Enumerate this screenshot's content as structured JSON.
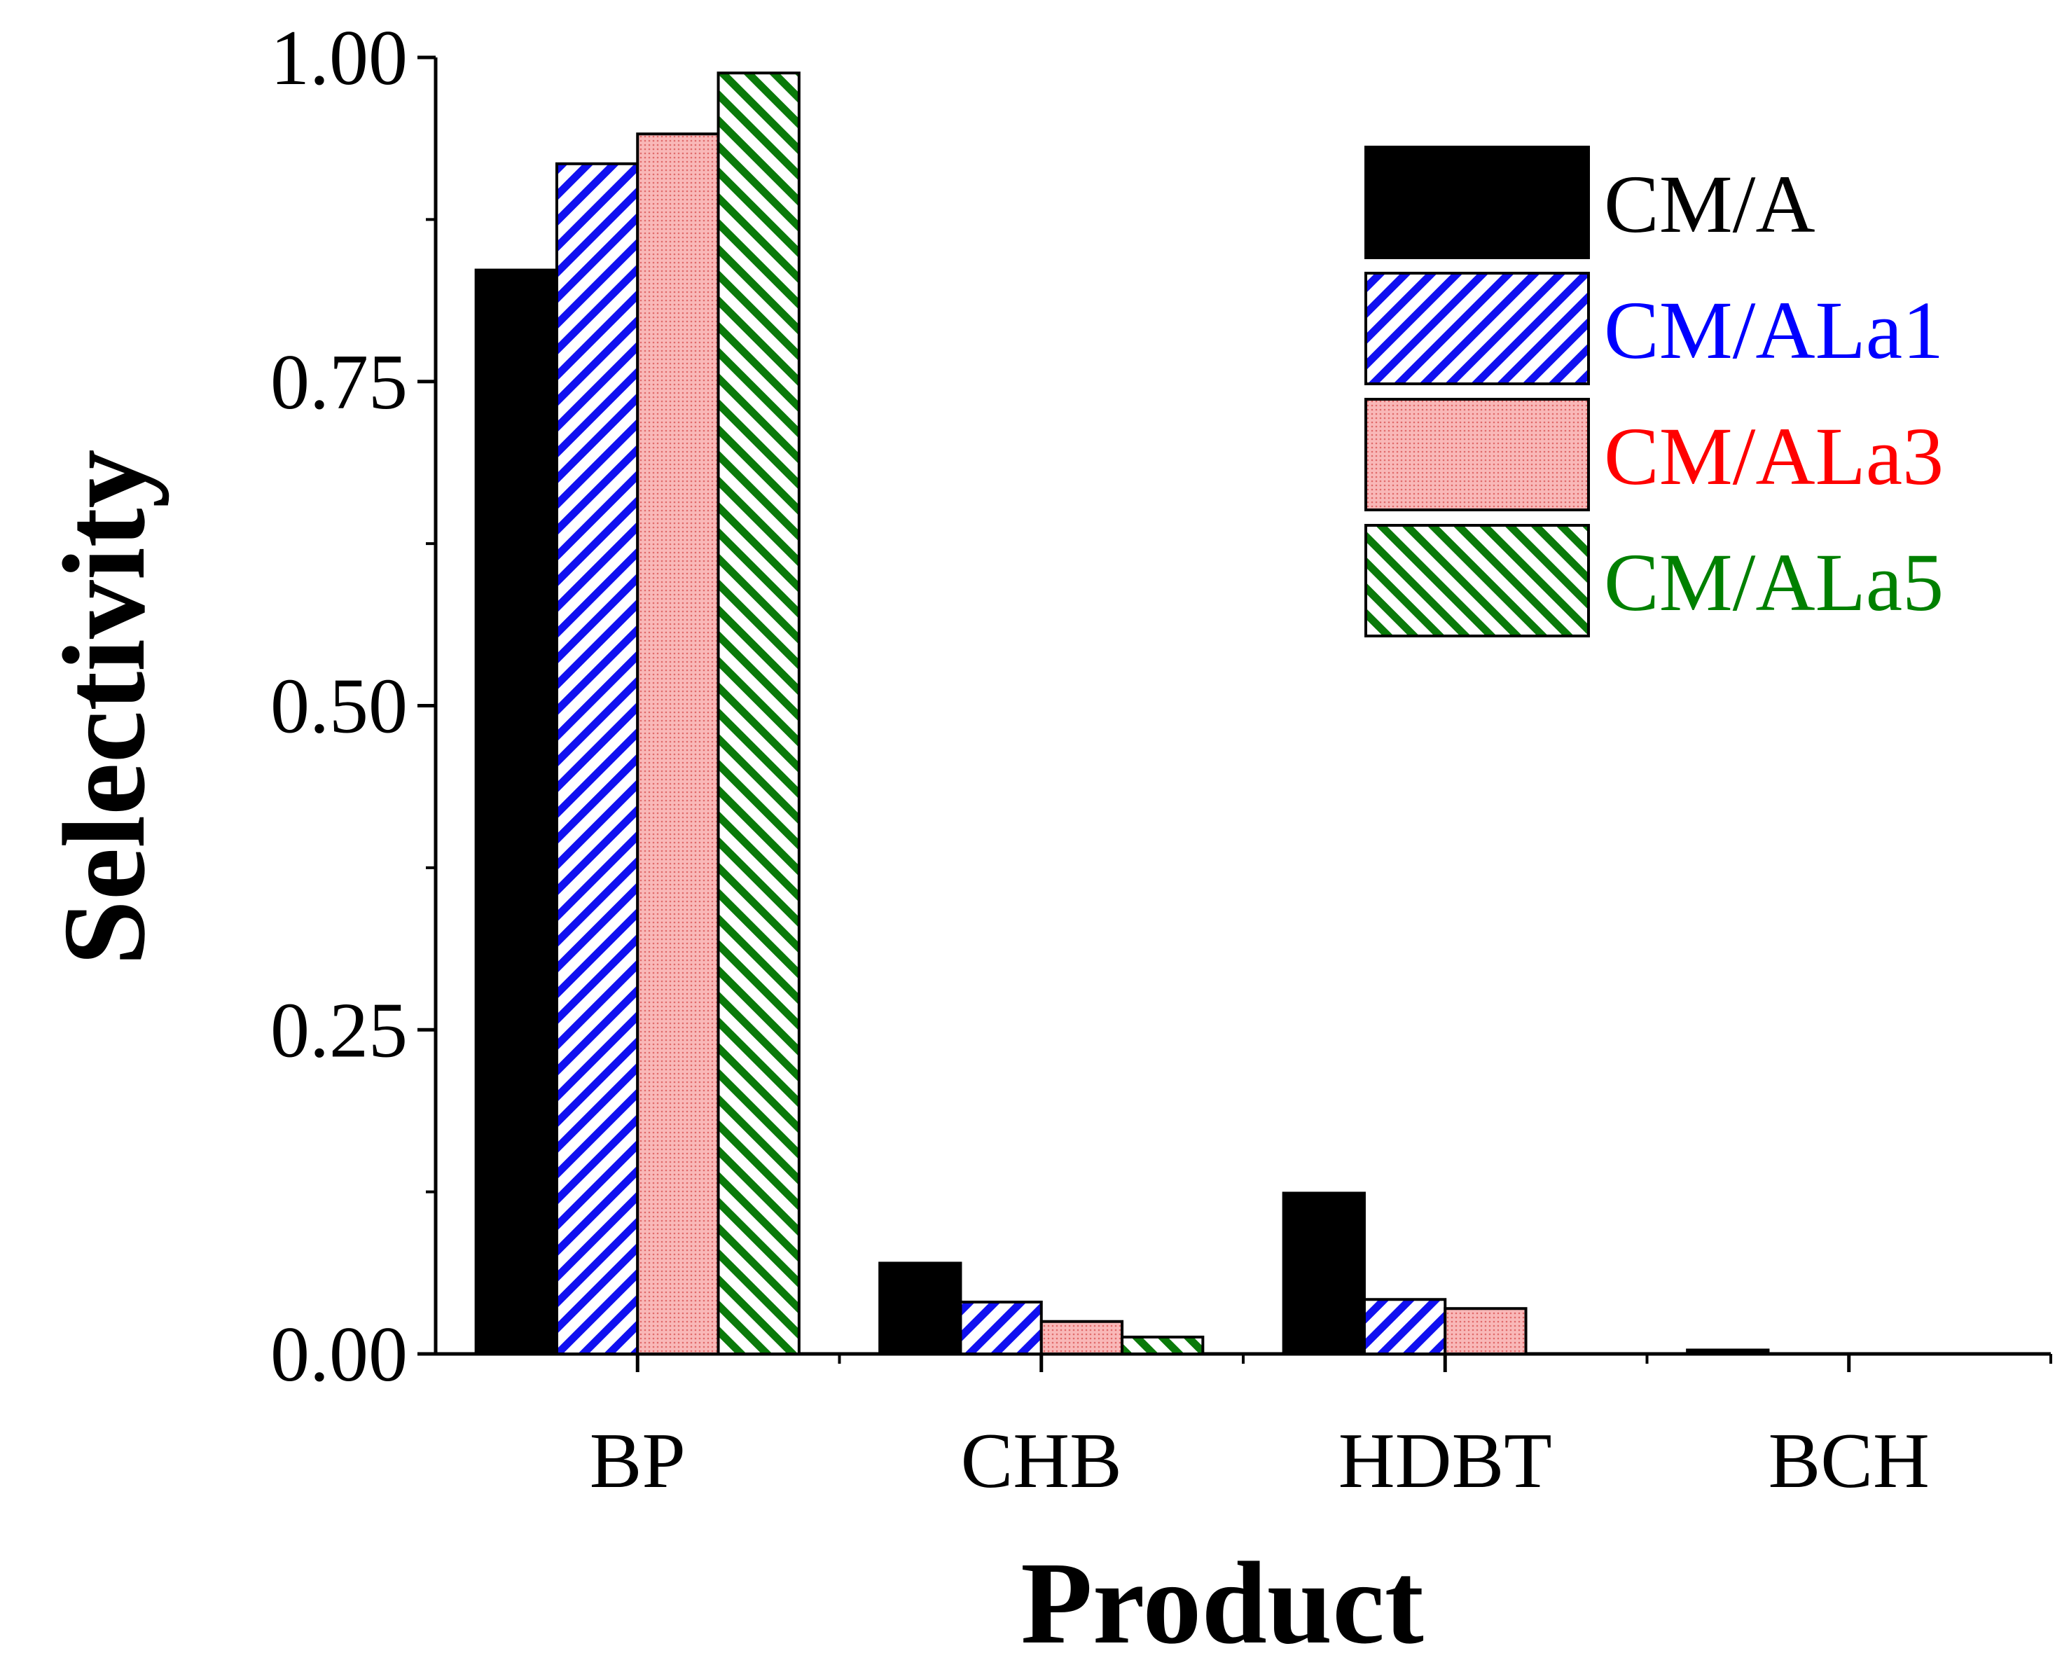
{
  "chart_data": {
    "type": "bar",
    "title": "",
    "xlabel": "Product",
    "ylabel": "Selectivity",
    "ylim": [
      0,
      1.0
    ],
    "yticks": [
      "0.00",
      "0.25",
      "0.50",
      "0.75",
      "1.00"
    ],
    "categories": [
      "BP",
      "CHB",
      "HDBT",
      "BCH"
    ],
    "series": [
      {
        "name": "CM/A",
        "values": [
          0.836,
          0.07,
          0.124,
          0.003
        ],
        "color": "#000000",
        "pattern": "solid",
        "label_color": "#000000"
      },
      {
        "name": "CM/ALa1",
        "values": [
          0.918,
          0.04,
          0.042,
          0.0
        ],
        "color": "#1010f0",
        "pattern": "hatch-up",
        "label_color": "#0000ff"
      },
      {
        "name": "CM/ALa3",
        "values": [
          0.941,
          0.025,
          0.035,
          0.0
        ],
        "color": "#f07a7a",
        "pattern": "dots",
        "label_color": "#ff0000"
      },
      {
        "name": "CM/ALa5",
        "values": [
          0.988,
          0.013,
          0.0,
          0.0
        ],
        "color": "#0a7a0a",
        "pattern": "hatch-down",
        "label_color": "#008000"
      }
    ],
    "legend_position": "top-right",
    "grid": false
  }
}
